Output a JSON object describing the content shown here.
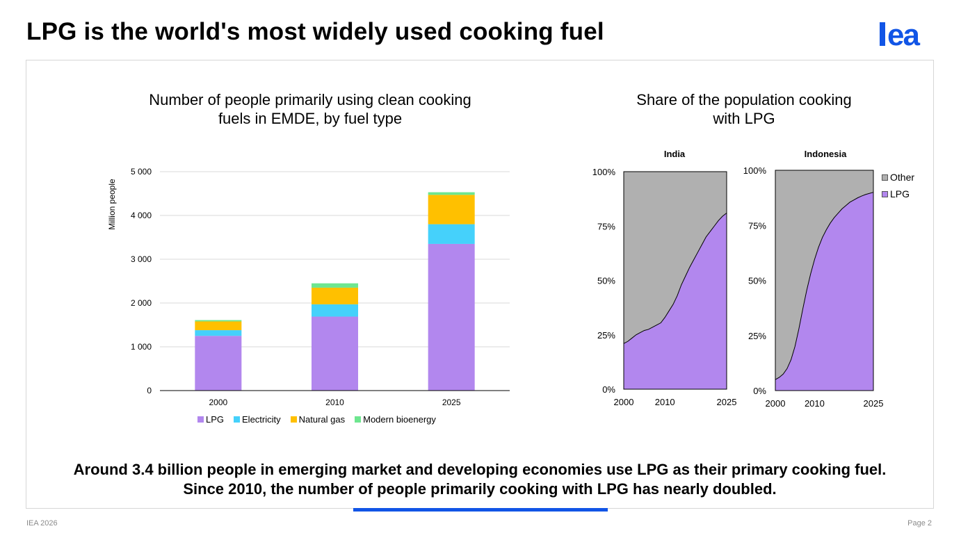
{
  "slide": {
    "title": "LPG is the world's most widely used cooking fuel",
    "caption_line1": "Around 3.4 billion people in emerging market and developing economies use LPG as their primary cooking fuel.",
    "caption_line2": "Since 2010, the number of people primarily cooking with LPG has nearly doubled.",
    "footer_left": "IEA 2026",
    "footer_right": "Page 2",
    "logo_text": "iea",
    "colors": {
      "brand": "#1155e6",
      "lpg": "#b287ee",
      "electricity": "#45d1fb",
      "natural_gas": "#ffc000",
      "modern_bioenergy": "#6ee68f",
      "other": "#b0b0b0"
    }
  },
  "chart_data": [
    {
      "type": "bar",
      "stacked": true,
      "title_line1": "Number of people primarily using clean cooking",
      "title_line2": "fuels in EMDE, by fuel type",
      "ylabel": "Million people",
      "xlabel": "",
      "categories": [
        "2000",
        "2010",
        "2025"
      ],
      "ylim": [
        0,
        5000
      ],
      "yticks": [
        0,
        1000,
        2000,
        3000,
        4000,
        5000
      ],
      "ytick_labels": [
        "0",
        "1 000",
        "2 000",
        "3 000",
        "4 000",
        "5 000"
      ],
      "grid": true,
      "legend_position": "bottom",
      "series": [
        {
          "name": "LPG",
          "color": "#b287ee",
          "values": [
            1250,
            1690,
            3350
          ]
        },
        {
          "name": "Electricity",
          "color": "#45d1fb",
          "values": [
            130,
            280,
            450
          ]
        },
        {
          "name": "Natural gas",
          "color": "#ffc000",
          "values": [
            200,
            380,
            670
          ]
        },
        {
          "name": "Modern bioenergy",
          "color": "#6ee68f",
          "values": [
            30,
            100,
            60
          ]
        }
      ]
    },
    {
      "type": "area",
      "stacked": true,
      "title_line1": "Share of the population cooking",
      "title_line2": "with LPG",
      "legend_position": "right",
      "legend": [
        {
          "name": "Other",
          "color": "#b0b0b0"
        },
        {
          "name": "LPG",
          "color": "#b287ee"
        }
      ],
      "yticks": [
        0,
        25,
        50,
        75,
        100
      ],
      "ytick_labels": [
        "0%",
        "25%",
        "50%",
        "75%",
        "100%"
      ],
      "xticks": [
        2000,
        2010,
        2025
      ],
      "xtick_labels": [
        "2000",
        "2010",
        "2025"
      ],
      "panels": [
        {
          "name": "India",
          "x": [
            2000,
            2001,
            2002,
            2003,
            2004,
            2005,
            2006,
            2007,
            2008,
            2009,
            2010,
            2011,
            2012,
            2013,
            2014,
            2015,
            2016,
            2017,
            2018,
            2019,
            2020,
            2021,
            2022,
            2023,
            2024,
            2025
          ],
          "lpg": [
            21,
            22,
            23.5,
            25,
            26,
            27,
            27.5,
            28.5,
            29.5,
            30.5,
            33,
            36,
            39,
            43,
            48,
            52,
            56,
            59.5,
            63,
            66.5,
            70,
            72.5,
            75,
            77.5,
            79.5,
            81
          ]
        },
        {
          "name": "Indonesia",
          "x": [
            2000,
            2001,
            2002,
            2003,
            2004,
            2005,
            2006,
            2007,
            2008,
            2009,
            2010,
            2011,
            2012,
            2013,
            2014,
            2015,
            2016,
            2017,
            2018,
            2019,
            2020,
            2021,
            2022,
            2023,
            2024,
            2025
          ],
          "lpg": [
            5,
            6,
            7.5,
            10,
            14,
            20,
            28,
            37,
            45.5,
            53,
            59.5,
            65,
            69.5,
            73,
            76,
            78.5,
            80.5,
            82.5,
            84,
            85.5,
            86.5,
            87.5,
            88.3,
            89,
            89.5,
            90
          ]
        }
      ]
    }
  ]
}
